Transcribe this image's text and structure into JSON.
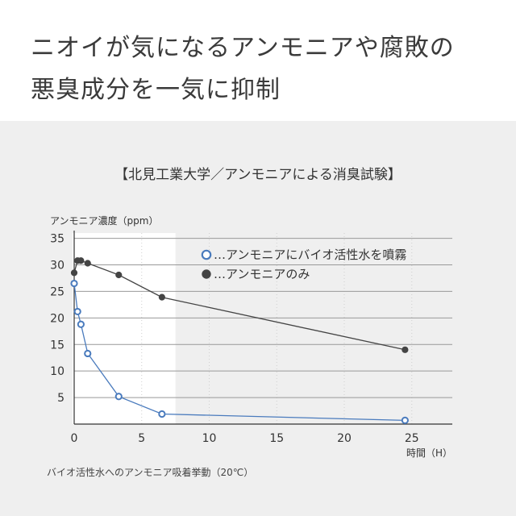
{
  "headline": {
    "line1": "ニオイが気になるアンモニアや腐敗の",
    "line2": "悪臭成分を一気に抑制"
  },
  "colors": {
    "panel_bg": "#efefef",
    "highlight_bg": "#ffffff",
    "grid": "#999999",
    "series_treated": "#4a7bbd",
    "series_control": "#444444"
  },
  "chart_data": {
    "type": "line",
    "title": "【北見工業大学／アンモニアによる消臭試験】",
    "ylabel": "アンモニア濃度（ppm）",
    "xlabel": "時間（H）",
    "caption": "バイオ活性水へのアンモニア吸着挙動（20℃）",
    "xlim": [
      0,
      28
    ],
    "ylim": [
      0,
      36
    ],
    "x_ticks": [
      0,
      5,
      10,
      15,
      20,
      25
    ],
    "y_ticks": [
      5,
      10,
      15,
      20,
      25,
      30,
      35
    ],
    "grid": "horizontal",
    "legend_position": "top-right",
    "highlight_x_range": [
      0,
      7.5
    ],
    "series": [
      {
        "name": "…アンモニアにバイオ活性水を噴霧",
        "marker": "hollow-circle",
        "x": [
          0,
          0.25,
          0.5,
          1,
          3.3,
          6.5,
          24.5
        ],
        "y": [
          26.5,
          21.2,
          18.8,
          13.3,
          5.2,
          1.9,
          0.7
        ]
      },
      {
        "name": "…アンモニアのみ",
        "marker": "filled-circle",
        "x": [
          0,
          0.25,
          0.5,
          1,
          3.3,
          6.5,
          24.5
        ],
        "y": [
          28.5,
          30.8,
          30.8,
          30.3,
          28.1,
          23.9,
          14.0
        ]
      }
    ]
  }
}
